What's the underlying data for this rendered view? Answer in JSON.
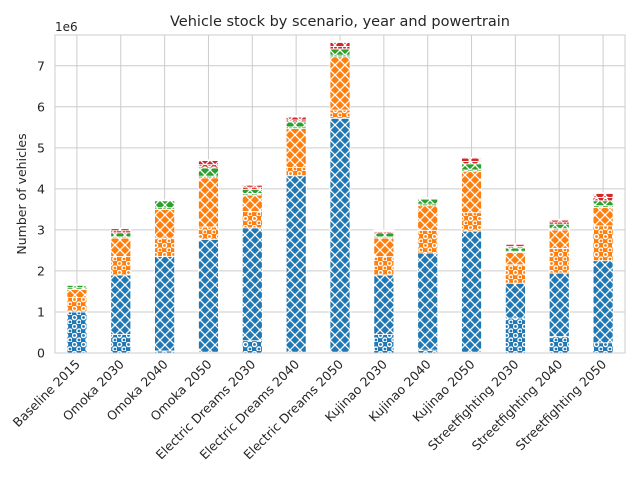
{
  "chart_data": {
    "type": "bar",
    "stacked": true,
    "title": "Vehicle stock by scenario, year and powertrain",
    "xlabel": "",
    "ylabel": "Number of vehicles",
    "y_offset_label": "1e6",
    "ylim": [
      0,
      7.75
    ],
    "yticks": [
      "0",
      "1",
      "2",
      "3",
      "4",
      "5",
      "6",
      "7"
    ],
    "grid": true,
    "legend": "none",
    "colors": [
      "#1f77b4",
      "#ff7f0e",
      "#2ca02c",
      "#d62728",
      "#9467bd"
    ],
    "categories": [
      "Baseline 2015",
      "Omoka 2030",
      "Omoka 2040",
      "Omoka 2050",
      "Electric Dreams 2030",
      "Electric Dreams 2040",
      "Electric Dreams 2050",
      "Kujinao 2030",
      "Kujinao 2040",
      "Kujinao 2050",
      "Streetfighting 2030",
      "Streetfighting 2040",
      "Streetfighting 2050"
    ],
    "stack_groups": [
      {
        "color": "#1f77b4",
        "layers": [
          {
            "pattern": "dots",
            "values": [
              1.0,
              0.45,
              0.05,
              0.02,
              0.3,
              0.02,
              0.02,
              0.45,
              0.07,
              0.02,
              0.85,
              0.4,
              0.25
            ]
          },
          {
            "pattern": "cross",
            "values": [
              0.0,
              1.45,
              2.3,
              2.75,
              2.75,
              4.3,
              5.7,
              1.45,
              2.37,
              2.95,
              0.85,
              1.55,
              2.0
            ]
          }
        ]
      },
      {
        "color": "#ff7f0e",
        "layers": [
          {
            "pattern": "dots",
            "values": [
              0.35,
              0.45,
              0.45,
              0.3,
              0.4,
              0.2,
              0.2,
              0.45,
              0.55,
              0.45,
              0.45,
              0.6,
              0.85
            ]
          },
          {
            "pattern": "cross",
            "values": [
              0.2,
              0.45,
              0.7,
              1.2,
              0.4,
              0.95,
              1.3,
              0.45,
              0.6,
              1.0,
              0.3,
              0.45,
              0.45
            ]
          }
        ]
      },
      {
        "color": "#2ca02c",
        "layers": [
          {
            "pattern": "dots",
            "values": [
              0.04,
              0.03,
              0.04,
              0.04,
              0.04,
              0.04,
              0.04,
              0.03,
              0.04,
              0.04,
              0.03,
              0.04,
              0.04
            ]
          },
          {
            "pattern": "cross",
            "values": [
              0.06,
              0.1,
              0.17,
              0.2,
              0.1,
              0.12,
              0.15,
              0.1,
              0.12,
              0.15,
              0.08,
              0.1,
              0.12
            ]
          }
        ]
      },
      {
        "color": "#d62728",
        "layers": [
          {
            "pattern": "dots",
            "values": [
              0.01,
              0.05,
              0.0,
              0.08,
              0.05,
              0.05,
              0.06,
              0.03,
              0.01,
              0.06,
              0.04,
              0.05,
              0.08
            ]
          },
          {
            "pattern": "cross",
            "values": [
              0.0,
              0.05,
              0.0,
              0.1,
              0.05,
              0.07,
              0.1,
              0.02,
              0.0,
              0.08,
              0.05,
              0.05,
              0.1
            ]
          }
        ]
      },
      {
        "color": "#9467bd",
        "layers": [
          {
            "pattern": "dots",
            "values": [
              0.01,
              0.01,
              0.01,
              0.01,
              0.01,
              0.02,
              0.02,
              0.01,
              0.01,
              0.01,
              0.01,
              0.01,
              0.01
            ]
          },
          {
            "pattern": "cross",
            "values": [
              0.01,
              0.01,
              0.01,
              0.01,
              0.01,
              0.02,
              0.02,
              0.01,
              0.01,
              0.01,
              0.01,
              0.01,
              0.01
            ]
          }
        ]
      }
    ]
  }
}
